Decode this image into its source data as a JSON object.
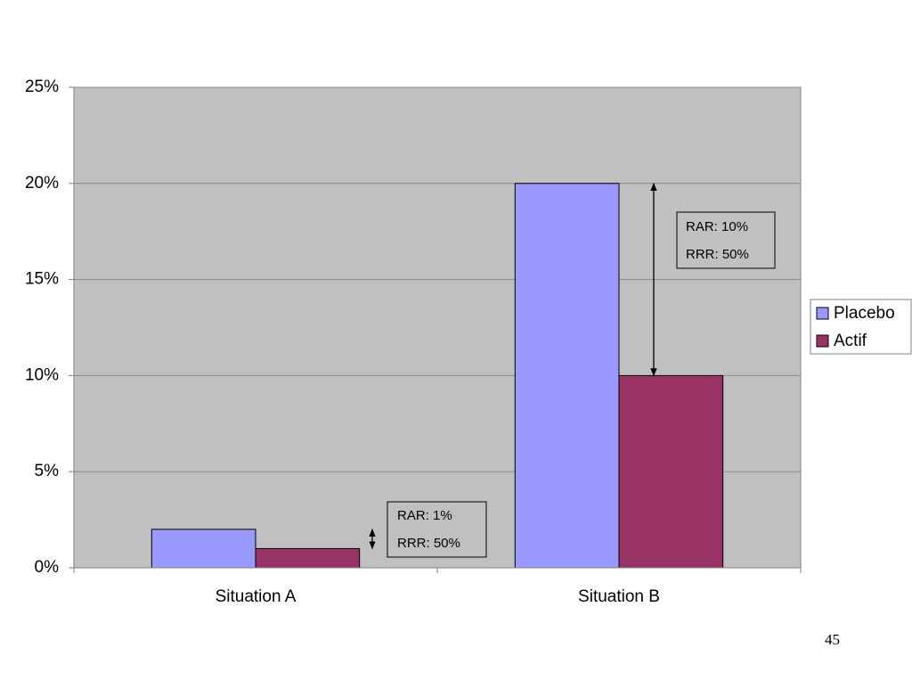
{
  "chart_data": {
    "type": "bar",
    "categories": [
      "Situation A",
      "Situation B"
    ],
    "series": [
      {
        "name": "Placebo",
        "color": "#9999ff",
        "values": [
          2,
          20
        ]
      },
      {
        "name": "Actif",
        "color": "#993366",
        "values": [
          1,
          10
        ]
      }
    ],
    "ylim": [
      0,
      25
    ],
    "yticks": [
      {
        "value": 0,
        "label": "0%"
      },
      {
        "value": 5,
        "label": "5%"
      },
      {
        "value": 10,
        "label": "10%"
      },
      {
        "value": 15,
        "label": "15%"
      },
      {
        "value": 20,
        "label": "20%"
      },
      {
        "value": 25,
        "label": "25%"
      }
    ],
    "grid": true,
    "legend": "right",
    "annotations": [
      {
        "lines": [
          "RAR: 1%",
          "RRR: 50%"
        ]
      },
      {
        "lines": [
          "RAR: 10%",
          "RRR: 50%"
        ]
      }
    ]
  },
  "page_number": "45"
}
